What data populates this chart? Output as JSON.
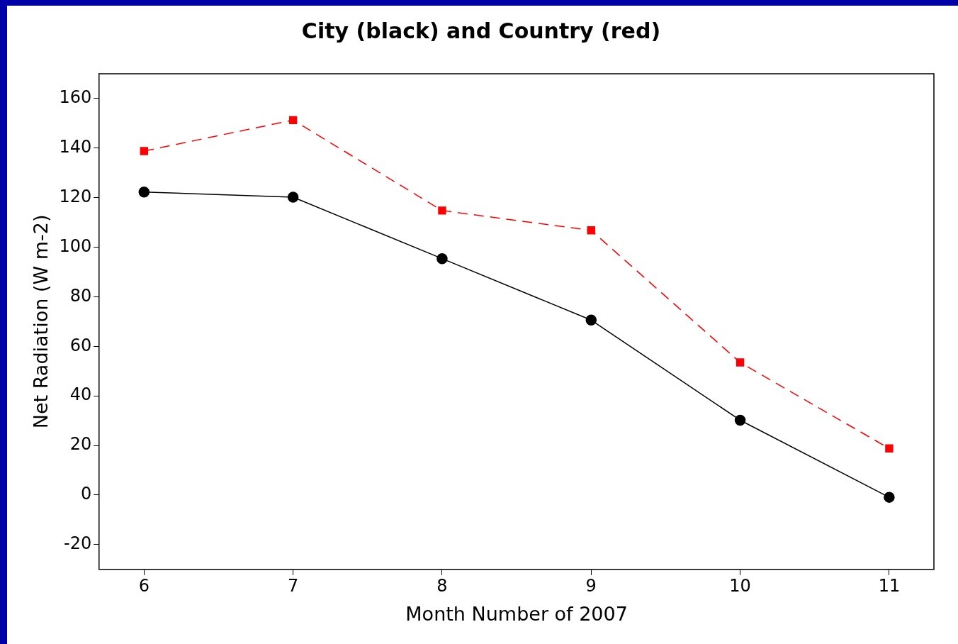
{
  "chart_data": {
    "type": "line",
    "title": "City (black) and Country (red)",
    "xlabel": "Month Number of 2007",
    "ylabel": "Net Radiation (W m-2)",
    "x": [
      6,
      7,
      8,
      9,
      10,
      11
    ],
    "series": [
      {
        "color": "#000000",
        "marker": "circle",
        "line_style": "solid",
        "values": [
          122.3,
          120.2,
          95.4,
          70.6,
          30.2,
          -0.9
        ]
      },
      {
        "color": "#ff0000",
        "marker": "square",
        "line_style": "dashed",
        "values": [
          138.8,
          151.3,
          114.8,
          106.8,
          53.5,
          18.8
        ]
      }
    ],
    "xlim": [
      5.7,
      11.3
    ],
    "xticks": [
      6,
      7,
      8,
      9,
      10,
      11
    ],
    "ylim": [
      -30,
      170
    ],
    "yticks": [
      -20,
      0,
      20,
      40,
      60,
      80,
      100,
      120,
      140,
      160
    ],
    "grid": false,
    "legend": false
  }
}
